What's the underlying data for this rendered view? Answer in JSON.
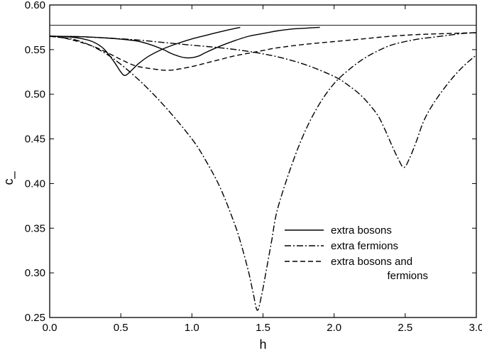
{
  "chart_data": {
    "type": "line",
    "xlabel": "h",
    "ylabel": "c_",
    "xlim": [
      0.0,
      3.0
    ],
    "ylim": [
      0.25,
      0.6
    ],
    "xticks": [
      "0.0",
      "0.5",
      "1.0",
      "1.5",
      "2.0",
      "2.5",
      "3.0"
    ],
    "yticks": [
      "0.25",
      "0.30",
      "0.35",
      "0.40",
      "0.45",
      "0.50",
      "0.55",
      "0.60"
    ],
    "grid": false,
    "legend_position": "lower-right",
    "legend": [
      {
        "label": "extra bosons",
        "style": "solid"
      },
      {
        "label": "extra fermions",
        "style": "dashdot"
      },
      {
        "label": "extra bosons and\nfermions",
        "style": "dashed"
      }
    ],
    "reference_line": {
      "y": 0.5774,
      "style": "solid-thin"
    },
    "series": [
      {
        "style": "solid",
        "x": [
          0.0,
          0.1,
          0.2,
          0.3,
          0.38,
          0.45,
          0.5,
          0.53,
          0.57,
          0.63,
          0.7,
          0.8,
          0.9,
          1.0,
          1.1,
          1.2,
          1.34
        ],
        "y": [
          0.565,
          0.5645,
          0.563,
          0.559,
          0.551,
          0.537,
          0.525,
          0.521,
          0.526,
          0.535,
          0.543,
          0.551,
          0.557,
          0.562,
          0.566,
          0.57,
          0.575
        ]
      },
      {
        "style": "solid",
        "x": [
          0.0,
          0.2,
          0.4,
          0.6,
          0.7,
          0.8,
          0.85,
          0.9,
          0.95,
          1.0,
          1.05,
          1.1,
          1.2,
          1.3,
          1.4,
          1.5,
          1.6,
          1.7,
          1.8,
          1.9
        ],
        "y": [
          0.565,
          0.5645,
          0.563,
          0.56,
          0.556,
          0.55,
          0.546,
          0.543,
          0.541,
          0.541,
          0.543,
          0.547,
          0.554,
          0.56,
          0.565,
          0.568,
          0.571,
          0.573,
          0.574,
          0.575
        ]
      },
      {
        "style": "dashdot",
        "x": [
          0.0,
          0.2,
          0.4,
          0.6,
          0.8,
          1.0,
          1.1,
          1.2,
          1.3,
          1.35,
          1.4,
          1.43,
          1.46,
          1.49,
          1.52,
          1.56,
          1.6,
          1.7,
          1.8,
          1.9,
          2.0,
          2.1,
          2.2,
          2.3,
          2.4,
          2.5,
          2.6,
          2.7,
          2.8,
          2.9,
          3.0
        ],
        "y": [
          0.565,
          0.56,
          0.545,
          0.52,
          0.488,
          0.45,
          0.425,
          0.395,
          0.355,
          0.33,
          0.3,
          0.278,
          0.258,
          0.275,
          0.3,
          0.335,
          0.37,
          0.42,
          0.46,
          0.49,
          0.512,
          0.527,
          0.539,
          0.548,
          0.555,
          0.559,
          0.562,
          0.564,
          0.566,
          0.568,
          0.569
        ]
      },
      {
        "style": "dashdot",
        "x": [
          0.0,
          0.2,
          0.4,
          0.6,
          0.8,
          1.0,
          1.2,
          1.4,
          1.6,
          1.8,
          2.0,
          2.1,
          2.2,
          2.3,
          2.35,
          2.4,
          2.45,
          2.49,
          2.53,
          2.58,
          2.63,
          2.7,
          2.8,
          2.9,
          3.0
        ],
        "y": [
          0.565,
          0.5645,
          0.563,
          0.561,
          0.558,
          0.555,
          0.552,
          0.548,
          0.542,
          0.533,
          0.52,
          0.51,
          0.497,
          0.478,
          0.463,
          0.445,
          0.428,
          0.418,
          0.428,
          0.448,
          0.47,
          0.49,
          0.512,
          0.53,
          0.544
        ]
      },
      {
        "style": "dashed",
        "x": [
          0.0,
          0.1,
          0.2,
          0.3,
          0.4,
          0.5,
          0.6,
          0.7,
          0.8,
          0.85,
          0.9,
          1.0,
          1.1,
          1.2,
          1.3,
          1.4,
          1.5,
          1.6,
          1.8,
          2.0,
          2.2,
          2.4,
          2.6,
          2.8,
          3.0
        ],
        "y": [
          0.565,
          0.563,
          0.559,
          0.554,
          0.547,
          0.539,
          0.532,
          0.529,
          0.527,
          0.527,
          0.528,
          0.531,
          0.535,
          0.539,
          0.543,
          0.546,
          0.549,
          0.552,
          0.556,
          0.559,
          0.562,
          0.565,
          0.567,
          0.568,
          0.569
        ]
      }
    ]
  }
}
